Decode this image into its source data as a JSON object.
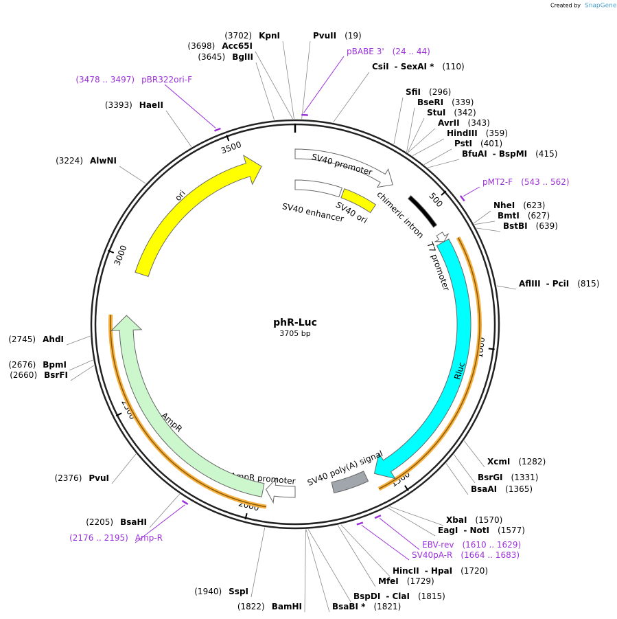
{
  "credit": {
    "prefix": "Created by",
    "brand": "SnapGene"
  },
  "plasmid": {
    "name": "phR-Luc",
    "length": "3705 bp"
  },
  "ticks": [
    500,
    1000,
    1500,
    2000,
    2500,
    3000,
    3500
  ],
  "features": [
    {
      "name": "SV40 promoter"
    },
    {
      "name": "SV40 enhancer"
    },
    {
      "name": "SV40 ori"
    },
    {
      "name": "chimeric intron"
    },
    {
      "name": "T7 promoter"
    },
    {
      "name": "Rluc"
    },
    {
      "name": "SV40 poly(A) signal"
    },
    {
      "name": "AmpR promoter"
    },
    {
      "name": "AmpR"
    },
    {
      "name": "ori"
    }
  ],
  "sites": [
    {
      "name": "KpnI",
      "pos": "(3702)"
    },
    {
      "name": "Acc65I",
      "pos": "(3698)"
    },
    {
      "name": "BglII",
      "pos": "(3645)"
    },
    {
      "name": "PvuII",
      "pos": "(19)"
    },
    {
      "name": "CsiI",
      "name2": "- SexAI *",
      "pos": "(110)"
    },
    {
      "name": "SfiI",
      "pos": "(296)"
    },
    {
      "name": "BseRI",
      "pos": "(339)"
    },
    {
      "name": "StuI",
      "pos": "(342)"
    },
    {
      "name": "AvrII",
      "pos": "(343)"
    },
    {
      "name": "HindIII",
      "pos": "(359)"
    },
    {
      "name": "PstI",
      "pos": "(401)"
    },
    {
      "name": "BfuAI",
      "name2": "- BspMI",
      "pos": "(415)"
    },
    {
      "name": "NheI",
      "pos": "(623)"
    },
    {
      "name": "BmtI",
      "pos": "(627)"
    },
    {
      "name": "BstBI",
      "pos": "(639)"
    },
    {
      "name": "AflIII",
      "name2": "- PciI",
      "pos": "(815)"
    },
    {
      "name": "XcmI",
      "pos": "(1282)"
    },
    {
      "name": "BsrGI",
      "pos": "(1331)"
    },
    {
      "name": "BsaAI",
      "pos": "(1365)"
    },
    {
      "name": "XbaI",
      "pos": "(1570)"
    },
    {
      "name": "EagI",
      "name2": "- NotI",
      "pos": "(1577)"
    },
    {
      "name": "HincII",
      "name2": "- HpaI",
      "pos": "(1720)"
    },
    {
      "name": "MfeI",
      "pos": "(1729)"
    },
    {
      "name": "BspDI",
      "name2": "- ClaI",
      "pos": "(1815)"
    },
    {
      "name": "BsaBI *",
      "pos": "(1821)"
    },
    {
      "name": "BamHI",
      "pos": "(1822)"
    },
    {
      "name": "SspI",
      "pos": "(1940)"
    },
    {
      "name": "BsaHI",
      "pos": "(2205)"
    },
    {
      "name": "PvuI",
      "pos": "(2376)"
    },
    {
      "name": "BsrFI",
      "pos": "(2660)"
    },
    {
      "name": "BpmI",
      "pos": "(2676)"
    },
    {
      "name": "AhdI",
      "pos": "(2745)"
    },
    {
      "name": "AlwNI",
      "pos": "(3224)"
    },
    {
      "name": "HaeII",
      "pos": "(3393)"
    }
  ],
  "primers": [
    {
      "name": "pBABE 3'",
      "range": "(24 .. 44)"
    },
    {
      "name": "pMT2-F",
      "range": "(543 .. 562)"
    },
    {
      "name": "EBV-rev",
      "range": "(1610 .. 1629)"
    },
    {
      "name": "SV40pA-R",
      "range": "(1664 .. 1683)"
    },
    {
      "name": "Amp-R",
      "range": "(2176 .. 2195)"
    },
    {
      "name": "pBR322ori-F",
      "range": "(3478 .. 3497)"
    }
  ]
}
